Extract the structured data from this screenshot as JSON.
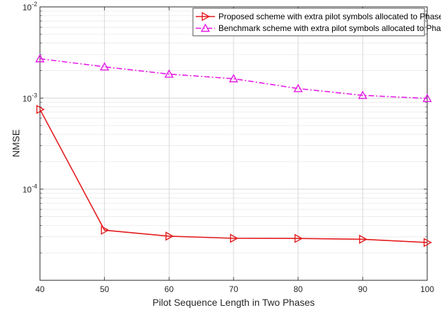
{
  "chart_data": {
    "type": "line",
    "title": "",
    "xlabel": "Pilot Sequence Length in Two Phases",
    "ylabel": "NMSE",
    "x": [
      40,
      50,
      60,
      70,
      80,
      90,
      100
    ],
    "xlim": [
      40,
      100
    ],
    "x_ticks": [
      "40",
      "50",
      "60",
      "70",
      "80",
      "90",
      "100"
    ],
    "yscale": "log",
    "ylim": [
      1e-05,
      0.01
    ],
    "y_ticks": [
      {
        "value": 0.01,
        "base": "10",
        "exp": "-2"
      },
      {
        "value": 0.001,
        "base": "10",
        "exp": "-3"
      },
      {
        "value": 0.0001,
        "base": "10",
        "exp": "-4"
      }
    ],
    "grid": true,
    "legend_position": "top-right",
    "series": [
      {
        "name": "Proposed scheme with extra pilot symbols allocated to Phase II",
        "color": "#e41a1c",
        "line_style": "solid",
        "marker": "triangle-right",
        "values": [
          0.00075,
          3.55e-05,
          3.05e-05,
          2.89e-05,
          2.88e-05,
          2.82e-05,
          2.6e-05
        ]
      },
      {
        "name": "Benchmark scheme with extra pilot symbols allocated to Phase I",
        "color": "#e619e6",
        "line_style": "dash-dot",
        "marker": "triangle-up",
        "values": [
          0.0027,
          0.0022,
          0.00183,
          0.00163,
          0.00127,
          0.00107,
          0.00099
        ]
      }
    ]
  }
}
